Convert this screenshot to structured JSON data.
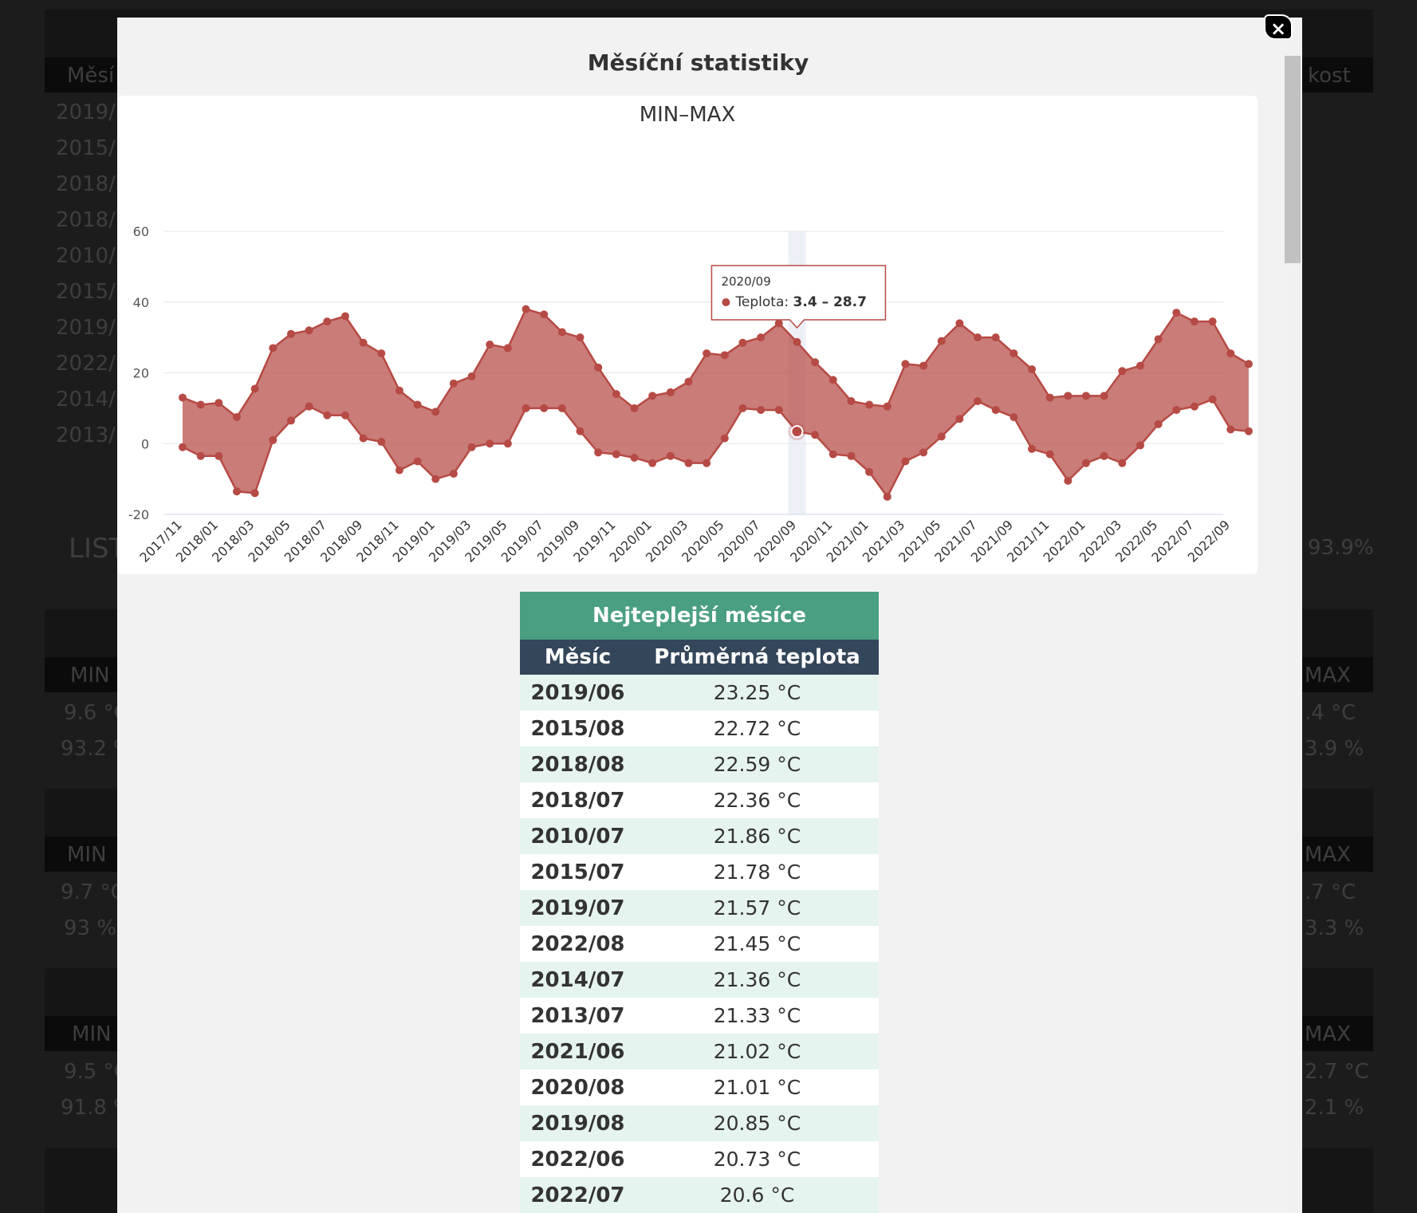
{
  "background": {
    "col_labels": [
      "Měsí",
      "kost"
    ],
    "months": [
      "2019/",
      "2015/",
      "2018/",
      "2018/",
      "2010/",
      "2015/",
      "2019/",
      "2022/",
      "2014/",
      "2013/"
    ],
    "section_label": "LIST",
    "right_pct": "93.9%",
    "blocks": [
      {
        "min_label": "MIN",
        "max_label": "MAX",
        "left_val1": "9.6 °C",
        "left_val2": "93.2 %",
        "right_val1": ".4 °C",
        "right_val2": "3.9 %"
      },
      {
        "min_label": "MIN",
        "max_label": "MAX",
        "left_val1": "9.7 °C",
        "left_val2": "93 %",
        "right_val1": ".7 °C",
        "right_val2": "3.3 %"
      },
      {
        "min_label": "MIN",
        "max_label": "MAX",
        "left_val1": "9.5 °C",
        "left_val2": "91.8 %",
        "right_val1": "2.7 °C",
        "right_val2": "2.1 %"
      }
    ]
  },
  "modal": {
    "title": "Měsíční statistiky",
    "close_label": "×"
  },
  "chart_data": {
    "type": "area",
    "title": "MIN–MAX",
    "ylim": [
      -20,
      60
    ],
    "y_ticks": [
      60,
      40,
      20,
      0,
      -20
    ],
    "x": [
      "2017/11",
      "2017/12",
      "2018/01",
      "2018/02",
      "2018/03",
      "2018/04",
      "2018/05",
      "2018/06",
      "2018/07",
      "2018/08",
      "2018/09",
      "2018/10",
      "2018/11",
      "2018/12",
      "2019/01",
      "2019/02",
      "2019/03",
      "2019/04",
      "2019/05",
      "2019/06",
      "2019/07",
      "2019/08",
      "2019/09",
      "2019/10",
      "2019/11",
      "2019/12",
      "2020/01",
      "2020/02",
      "2020/03",
      "2020/04",
      "2020/05",
      "2020/06",
      "2020/07",
      "2020/08",
      "2020/09",
      "2020/10",
      "2020/11",
      "2020/12",
      "2021/01",
      "2021/02",
      "2021/03",
      "2021/04",
      "2021/05",
      "2021/06",
      "2021/07",
      "2021/08",
      "2021/09",
      "2021/10",
      "2021/11",
      "2021/12",
      "2022/01",
      "2022/02",
      "2022/03",
      "2022/04",
      "2022/05",
      "2022/06",
      "2022/07",
      "2022/08",
      "2022/09",
      "2022/10"
    ],
    "x_tick_labels": [
      "2017/11",
      "2018/01",
      "2018/03",
      "2018/05",
      "2018/07",
      "2018/09",
      "2018/11",
      "2019/01",
      "2019/03",
      "2019/05",
      "2019/07",
      "2019/09",
      "2019/11",
      "2020/01",
      "2020/03",
      "2020/05",
      "2020/07",
      "2020/09",
      "2020/11",
      "2021/01",
      "2021/03",
      "2021/05",
      "2021/07",
      "2021/09",
      "2021/11",
      "2022/01",
      "2022/03",
      "2022/05",
      "2022/07",
      "2022/09"
    ],
    "series": [
      {
        "name": "Teplota",
        "low": [
          -1,
          -3.5,
          -3.5,
          -13.5,
          -14,
          1,
          6.5,
          10.5,
          8,
          8,
          1.5,
          0.5,
          -7.5,
          -5,
          -10,
          -8.5,
          -1,
          0,
          0,
          10,
          10,
          10,
          3.5,
          -2.5,
          -3,
          -4,
          -5.5,
          -3.5,
          -5.5,
          -5.5,
          1.5,
          10,
          9.5,
          9.5,
          3.4,
          2.5,
          -3,
          -3.5,
          -8,
          -15,
          -5,
          -2.5,
          2,
          7,
          12,
          9.5,
          7.5,
          -1.5,
          -3,
          -10.5,
          -5.5,
          -3.5,
          -5.5,
          -0.5,
          5.5,
          9.5,
          10.5,
          12.5,
          4,
          3.5
        ],
        "high": [
          13,
          11,
          11.5,
          7.5,
          15.5,
          27,
          31,
          32,
          34.5,
          36,
          28.5,
          25.5,
          15,
          11,
          9,
          17,
          19,
          28,
          27,
          38,
          36.5,
          31.5,
          30,
          21.5,
          14,
          10,
          13.5,
          14.5,
          17.5,
          25.5,
          25,
          28.5,
          30,
          34,
          28.7,
          23,
          18,
          12,
          11,
          10.5,
          22.5,
          22,
          29,
          34,
          30,
          30,
          25.5,
          21,
          13,
          13.5,
          13.5,
          13.5,
          20.5,
          22,
          29.5,
          37,
          34.5,
          34.5,
          25.5,
          22.5
        ],
        "color": "#b64a44"
      }
    ],
    "tooltip": {
      "x": "2020/09",
      "series": "Teplota",
      "low": 3.4,
      "high": 28.7,
      "text_label": "Teplota:",
      "text_value": "3.4 – 28.7"
    },
    "grid": true,
    "legend": "none"
  },
  "table": {
    "caption": "Nejteplejší měsíce",
    "headers": [
      "Měsíc",
      "Průměrná teplota"
    ],
    "rows": [
      {
        "month": "2019/06",
        "temp": "23.25 °C"
      },
      {
        "month": "2015/08",
        "temp": "22.72 °C"
      },
      {
        "month": "2018/08",
        "temp": "22.59 °C"
      },
      {
        "month": "2018/07",
        "temp": "22.36 °C"
      },
      {
        "month": "2010/07",
        "temp": "21.86 °C"
      },
      {
        "month": "2015/07",
        "temp": "21.78 °C"
      },
      {
        "month": "2019/07",
        "temp": "21.57 °C"
      },
      {
        "month": "2022/08",
        "temp": "21.45 °C"
      },
      {
        "month": "2014/07",
        "temp": "21.36 °C"
      },
      {
        "month": "2013/07",
        "temp": "21.33 °C"
      },
      {
        "month": "2021/06",
        "temp": "21.02 °C"
      },
      {
        "month": "2020/08",
        "temp": "21.01 °C"
      },
      {
        "month": "2019/08",
        "temp": "20.85 °C"
      },
      {
        "month": "2022/06",
        "temp": "20.73 °C"
      },
      {
        "month": "2022/07",
        "temp": "20.6 °C"
      }
    ]
  }
}
